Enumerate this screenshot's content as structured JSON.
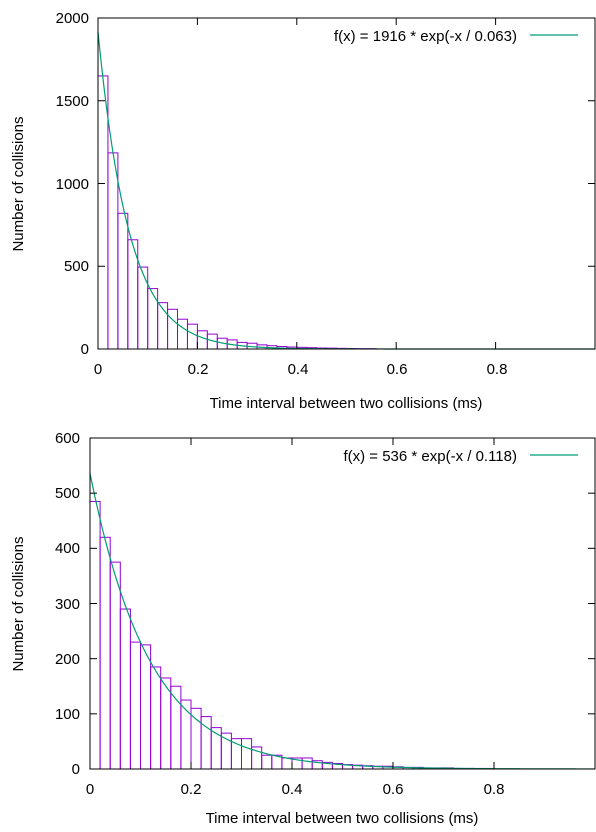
{
  "chart_data": [
    {
      "type": "bar",
      "title": "",
      "xlabel": "Time interval between two collisions (ms)",
      "ylabel": "Number of collisions",
      "xlim": [
        0,
        1
      ],
      "ylim": [
        0,
        2000
      ],
      "xticks": [
        {
          "value": 0,
          "label": "0"
        },
        {
          "value": 0.2,
          "label": "0.2"
        },
        {
          "value": 0.4,
          "label": "0.4"
        },
        {
          "value": 0.6,
          "label": "0.6"
        },
        {
          "value": 0.8,
          "label": "0.8"
        }
      ],
      "yticks": [
        {
          "value": 0,
          "label": "0"
        },
        {
          "value": 500,
          "label": "500"
        },
        {
          "value": 1000,
          "label": "1000"
        },
        {
          "value": 1500,
          "label": "1500"
        },
        {
          "value": 2000,
          "label": "2000"
        }
      ],
      "grid": false,
      "legend_position": "top-right",
      "bin_width": 0.02,
      "bins_start": 0,
      "values": [
        1650,
        1185,
        820,
        660,
        495,
        365,
        280,
        240,
        180,
        150,
        110,
        90,
        65,
        55,
        40,
        35,
        25,
        20,
        15,
        12,
        10,
        8,
        6,
        5,
        4,
        3,
        2,
        2
      ],
      "series": [
        {
          "name": "f(x) = 1916 * exp(-x / 0.063)",
          "kind": "fit",
          "amplitude": 1916,
          "tau": 0.063,
          "color": "#009e73"
        }
      ],
      "bar_color": "#9400d3"
    },
    {
      "type": "bar",
      "title": "",
      "xlabel": "Time interval between two collisions (ms)",
      "ylabel": "Number of collisions",
      "xlim": [
        0,
        1
      ],
      "ylim": [
        0,
        600
      ],
      "xticks": [
        {
          "value": 0,
          "label": "0"
        },
        {
          "value": 0.2,
          "label": "0.2"
        },
        {
          "value": 0.4,
          "label": "0.4"
        },
        {
          "value": 0.6,
          "label": "0.6"
        },
        {
          "value": 0.8,
          "label": "0.8"
        }
      ],
      "yticks": [
        {
          "value": 0,
          "label": "0"
        },
        {
          "value": 100,
          "label": "100"
        },
        {
          "value": 200,
          "label": "200"
        },
        {
          "value": 300,
          "label": "300"
        },
        {
          "value": 400,
          "label": "400"
        },
        {
          "value": 500,
          "label": "500"
        },
        {
          "value": 600,
          "label": "600"
        }
      ],
      "grid": false,
      "legend_position": "top-right",
      "bin_width": 0.02,
      "bins_start": 0,
      "values": [
        485,
        420,
        375,
        290,
        230,
        225,
        185,
        165,
        150,
        125,
        110,
        95,
        75,
        65,
        55,
        55,
        40,
        25,
        25,
        20,
        20,
        20,
        15,
        12,
        10,
        8,
        7,
        6,
        5,
        5,
        4,
        3,
        3,
        2,
        2,
        2,
        1,
        1,
        1,
        1
      ],
      "series": [
        {
          "name": "f(x) = 536 * exp(-x / 0.118)",
          "kind": "fit",
          "amplitude": 536,
          "tau": 0.118,
          "color": "#009e73"
        }
      ],
      "bar_color": "#9400d3"
    }
  ]
}
